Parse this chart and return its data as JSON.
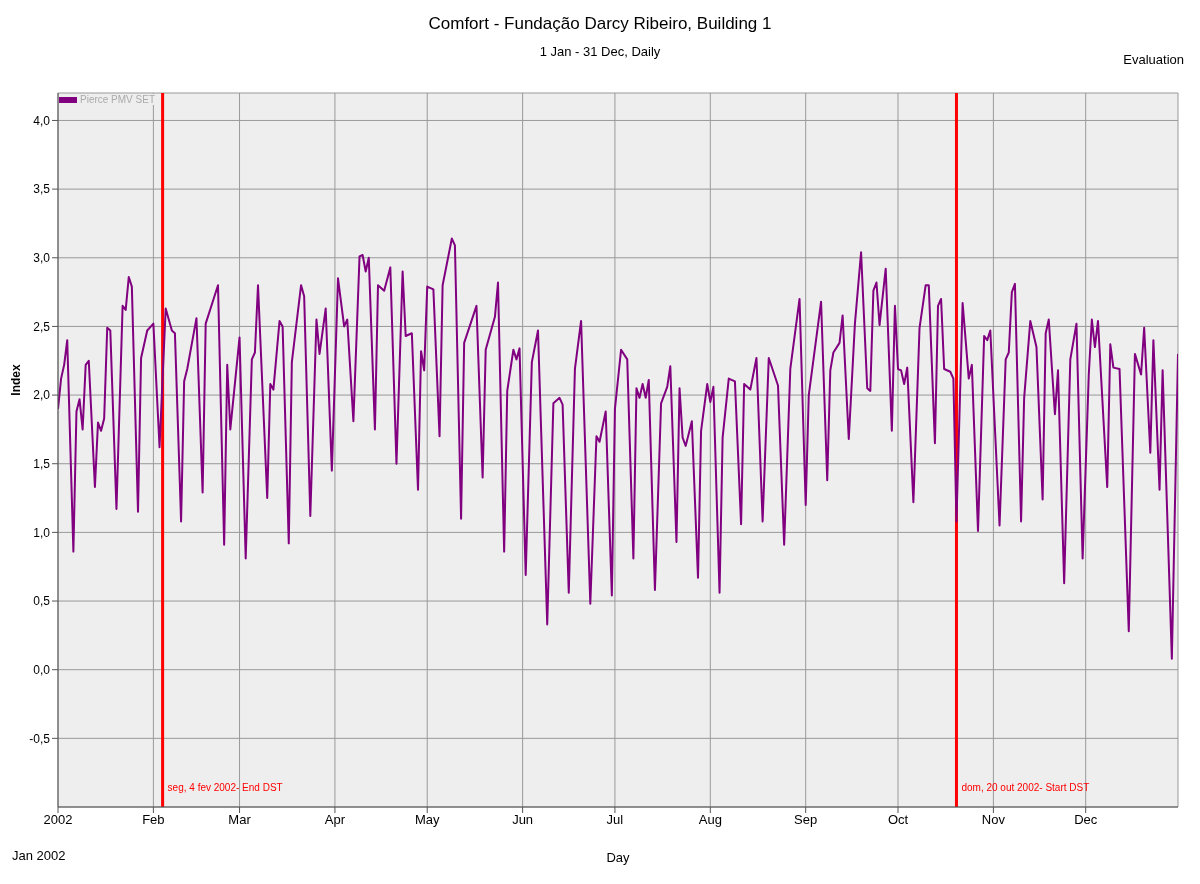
{
  "chart_data": {
    "type": "line",
    "title": "Comfort - Fundação Darcy Ribeiro, Building 1",
    "subtitle": "1 Jan - 31 Dec, Daily",
    "xlabel": "Day",
    "ylabel": "Index",
    "annotations": [
      "Evaluation",
      "Jan 2002"
    ],
    "legend": "top left",
    "grid": true,
    "marker": "none",
    "line_style": "solid",
    "xlim": [
      "2002-01-01",
      "2002-12-31"
    ],
    "xticks": [
      {
        "value": "2002-01-01",
        "label": "2002"
      },
      {
        "value": "2002-02-01",
        "label": "Feb"
      },
      {
        "value": "2002-03-01",
        "label": "Mar"
      },
      {
        "value": "2002-04-01",
        "label": "Apr"
      },
      {
        "value": "2002-05-01",
        "label": "May"
      },
      {
        "value": "2002-06-01",
        "label": "Jun"
      },
      {
        "value": "2002-07-01",
        "label": "Jul"
      },
      {
        "value": "2002-08-01",
        "label": "Aug"
      },
      {
        "value": "2002-09-01",
        "label": "Sep"
      },
      {
        "value": "2002-10-01",
        "label": "Oct"
      },
      {
        "value": "2002-11-01",
        "label": "Nov"
      },
      {
        "value": "2002-12-01",
        "label": "Dec"
      }
    ],
    "ylim": [
      -1,
      4.2
    ],
    "yticks": [
      {
        "value": -0.5,
        "label": "-0,5"
      },
      {
        "value": 0,
        "label": "0,0"
      },
      {
        "value": 0.5,
        "label": "0,5"
      },
      {
        "value": 1,
        "label": "1,0"
      },
      {
        "value": 1.5,
        "label": "1,5"
      },
      {
        "value": 2,
        "label": "2,0"
      },
      {
        "value": 2.5,
        "label": "2,5"
      },
      {
        "value": 3,
        "label": "3,0"
      },
      {
        "value": 3.5,
        "label": "3,5"
      },
      {
        "value": 4,
        "label": "4,0"
      }
    ],
    "ref_lines": [
      {
        "axis": "x",
        "value": "2002-02-04",
        "label": "seg, 4 fev 2002- End DST",
        "color": "#ff0000"
      },
      {
        "axis": "x",
        "value": "2002-10-20",
        "label": "dom, 20 out 2002- Start DST",
        "color": "#ff0000"
      }
    ],
    "series": [
      {
        "name": "Pierce PMV SET",
        "color": "#800080",
        "x": [
          "2002-01-01",
          "2002-01-02",
          "2002-01-03",
          "2002-01-04",
          "2002-01-06",
          "2002-01-07",
          "2002-01-08",
          "2002-01-09",
          "2002-01-10",
          "2002-01-11",
          "2002-01-13",
          "2002-01-14",
          "2002-01-15",
          "2002-01-16",
          "2002-01-17",
          "2002-01-18",
          "2002-01-20",
          "2002-01-22",
          "2002-01-23",
          "2002-01-24",
          "2002-01-25",
          "2002-01-27",
          "2002-01-28",
          "2002-01-30",
          "2002-02-01",
          "2002-02-03",
          "2002-02-05",
          "2002-02-07",
          "2002-02-08",
          "2002-02-10",
          "2002-02-11",
          "2002-02-12",
          "2002-02-15",
          "2002-02-17",
          "2002-02-18",
          "2002-02-22",
          "2002-02-24",
          "2002-02-25",
          "2002-02-26",
          "2002-03-01",
          "2002-03-03",
          "2002-03-05",
          "2002-03-06",
          "2002-03-07",
          "2002-03-10",
          "2002-03-11",
          "2002-03-12",
          "2002-03-14",
          "2002-03-15",
          "2002-03-17",
          "2002-03-18",
          "2002-03-21",
          "2002-03-22",
          "2002-03-24",
          "2002-03-26",
          "2002-03-27",
          "2002-03-29",
          "2002-03-31",
          "2002-04-02",
          "2002-04-04",
          "2002-04-05",
          "2002-04-07",
          "2002-04-09",
          "2002-04-10",
          "2002-04-11",
          "2002-04-12",
          "2002-04-14",
          "2002-04-15",
          "2002-04-17",
          "2002-04-19",
          "2002-04-21",
          "2002-04-23",
          "2002-04-24",
          "2002-04-26",
          "2002-04-28",
          "2002-04-29",
          "2002-04-30",
          "2002-05-01",
          "2002-05-03",
          "2002-05-05",
          "2002-05-06",
          "2002-05-09",
          "2002-05-10",
          "2002-05-12",
          "2002-05-13",
          "2002-05-17",
          "2002-05-19",
          "2002-05-20",
          "2002-05-23",
          "2002-05-24",
          "2002-05-26",
          "2002-05-27",
          "2002-05-29",
          "2002-05-30",
          "2002-05-31",
          "2002-06-02",
          "2002-06-04",
          "2002-06-06",
          "2002-06-09",
          "2002-06-11",
          "2002-06-13",
          "2002-06-14",
          "2002-06-16",
          "2002-06-18",
          "2002-06-20",
          "2002-06-23",
          "2002-06-25",
          "2002-06-26",
          "2002-06-28",
          "2002-06-30",
          "2002-07-01",
          "2002-07-03",
          "2002-07-05",
          "2002-07-07",
          "2002-07-08",
          "2002-07-09",
          "2002-07-10",
          "2002-07-11",
          "2002-07-12",
          "2002-07-14",
          "2002-07-16",
          "2002-07-18",
          "2002-07-19",
          "2002-07-21",
          "2002-07-22",
          "2002-07-23",
          "2002-07-24",
          "2002-07-26",
          "2002-07-28",
          "2002-07-29",
          "2002-07-31",
          "2002-08-01",
          "2002-08-02",
          "2002-08-04",
          "2002-08-05",
          "2002-08-07",
          "2002-08-09",
          "2002-08-11",
          "2002-08-12",
          "2002-08-14",
          "2002-08-16",
          "2002-08-18",
          "2002-08-20",
          "2002-08-23",
          "2002-08-25",
          "2002-08-27",
          "2002-08-30",
          "2002-09-01",
          "2002-09-02",
          "2002-09-05",
          "2002-09-06",
          "2002-09-08",
          "2002-09-09",
          "2002-09-10",
          "2002-09-12",
          "2002-09-13",
          "2002-09-15",
          "2002-09-17",
          "2002-09-19",
          "2002-09-21",
          "2002-09-22",
          "2002-09-23",
          "2002-09-24",
          "2002-09-25",
          "2002-09-27",
          "2002-09-29",
          "2002-09-30",
          "2002-10-01",
          "2002-10-02",
          "2002-10-03",
          "2002-10-04",
          "2002-10-06",
          "2002-10-08",
          "2002-10-10",
          "2002-10-11",
          "2002-10-13",
          "2002-10-14",
          "2002-10-15",
          "2002-10-16",
          "2002-10-18",
          "2002-10-19",
          "2002-10-20",
          "2002-10-22",
          "2002-10-24",
          "2002-10-25",
          "2002-10-27",
          "2002-10-29",
          "2002-10-30",
          "2002-10-31",
          "2002-11-03",
          "2002-11-05",
          "2002-11-06",
          "2002-11-07",
          "2002-11-08",
          "2002-11-10",
          "2002-11-11",
          "2002-11-13",
          "2002-11-15",
          "2002-11-17",
          "2002-11-18",
          "2002-11-19",
          "2002-11-21",
          "2002-11-22",
          "2002-11-24",
          "2002-11-26",
          "2002-11-28",
          "2002-11-30",
          "2002-12-02",
          "2002-12-03",
          "2002-12-04",
          "2002-12-05",
          "2002-12-08",
          "2002-12-09",
          "2002-12-10",
          "2002-12-12",
          "2002-12-15",
          "2002-12-17",
          "2002-12-19",
          "2002-12-20",
          "2002-12-22",
          "2002-12-23",
          "2002-12-25",
          "2002-12-26",
          "2002-12-29",
          "2002-12-31"
        ],
        "values": [
          1.9,
          2.12,
          2.22,
          2.4,
          0.86,
          1.88,
          1.97,
          1.75,
          2.22,
          2.25,
          1.33,
          1.8,
          1.74,
          1.83,
          2.49,
          2.47,
          1.17,
          2.65,
          2.62,
          2.86,
          2.79,
          1.15,
          2.27,
          2.47,
          2.52,
          1.62,
          2.63,
          2.47,
          2.45,
          1.08,
          2.1,
          2.19,
          2.56,
          1.29,
          2.52,
          2.8,
          0.91,
          2.22,
          1.75,
          2.42,
          0.81,
          2.26,
          2.31,
          2.8,
          1.25,
          2.08,
          2.04,
          2.54,
          2.5,
          0.92,
          2.24,
          2.8,
          2.72,
          1.12,
          2.55,
          2.3,
          2.63,
          1.45,
          2.85,
          2.5,
          2.55,
          1.81,
          3.01,
          3.02,
          2.9,
          3.0,
          1.75,
          2.8,
          2.76,
          2.93,
          1.5,
          2.9,
          2.43,
          2.45,
          1.31,
          2.32,
          2.18,
          2.79,
          2.77,
          1.7,
          2.8,
          3.14,
          3.09,
          1.1,
          2.38,
          2.65,
          1.4,
          2.33,
          2.57,
          2.82,
          0.86,
          2.03,
          2.33,
          2.26,
          2.34,
          0.69,
          2.24,
          2.47,
          0.33,
          1.94,
          1.98,
          1.93,
          0.56,
          2.19,
          2.54,
          0.48,
          1.7,
          1.66,
          1.88,
          0.54,
          1.9,
          2.33,
          2.26,
          0.81,
          2.05,
          1.98,
          2.08,
          1.98,
          2.11,
          0.58,
          1.94,
          2.06,
          2.21,
          0.93,
          2.05,
          1.69,
          1.63,
          1.81,
          0.67,
          1.74,
          2.08,
          1.95,
          2.06,
          0.56,
          1.69,
          2.12,
          2.1,
          1.06,
          2.08,
          2.04,
          2.27,
          1.08,
          2.27,
          2.07,
          0.91,
          2.19,
          2.7,
          1.2,
          2.0,
          2.51,
          2.68,
          1.38,
          2.18,
          2.31,
          2.38,
          2.58,
          1.68,
          2.52,
          3.04,
          2.05,
          2.03,
          2.76,
          2.82,
          2.51,
          2.92,
          1.74,
          2.65,
          2.19,
          2.18,
          2.08,
          2.2,
          1.22,
          2.49,
          2.8,
          2.8,
          1.65,
          2.65,
          2.7,
          2.19,
          2.17,
          2.12,
          1.08,
          2.67,
          2.12,
          2.22,
          1.01,
          2.43,
          2.4,
          2.47,
          1.05,
          2.26,
          2.31,
          2.75,
          2.81,
          1.08,
          1.98,
          2.54,
          2.35,
          1.24,
          2.45,
          2.55,
          1.86,
          2.18,
          0.63,
          2.26,
          2.52,
          0.81,
          2.15,
          2.55,
          2.35,
          2.54,
          1.33,
          2.37,
          2.2,
          2.19,
          0.28,
          2.3,
          2.15,
          2.49,
          1.58,
          2.4,
          1.31,
          2.18,
          0.08,
          2.3
        ]
      }
    ]
  }
}
